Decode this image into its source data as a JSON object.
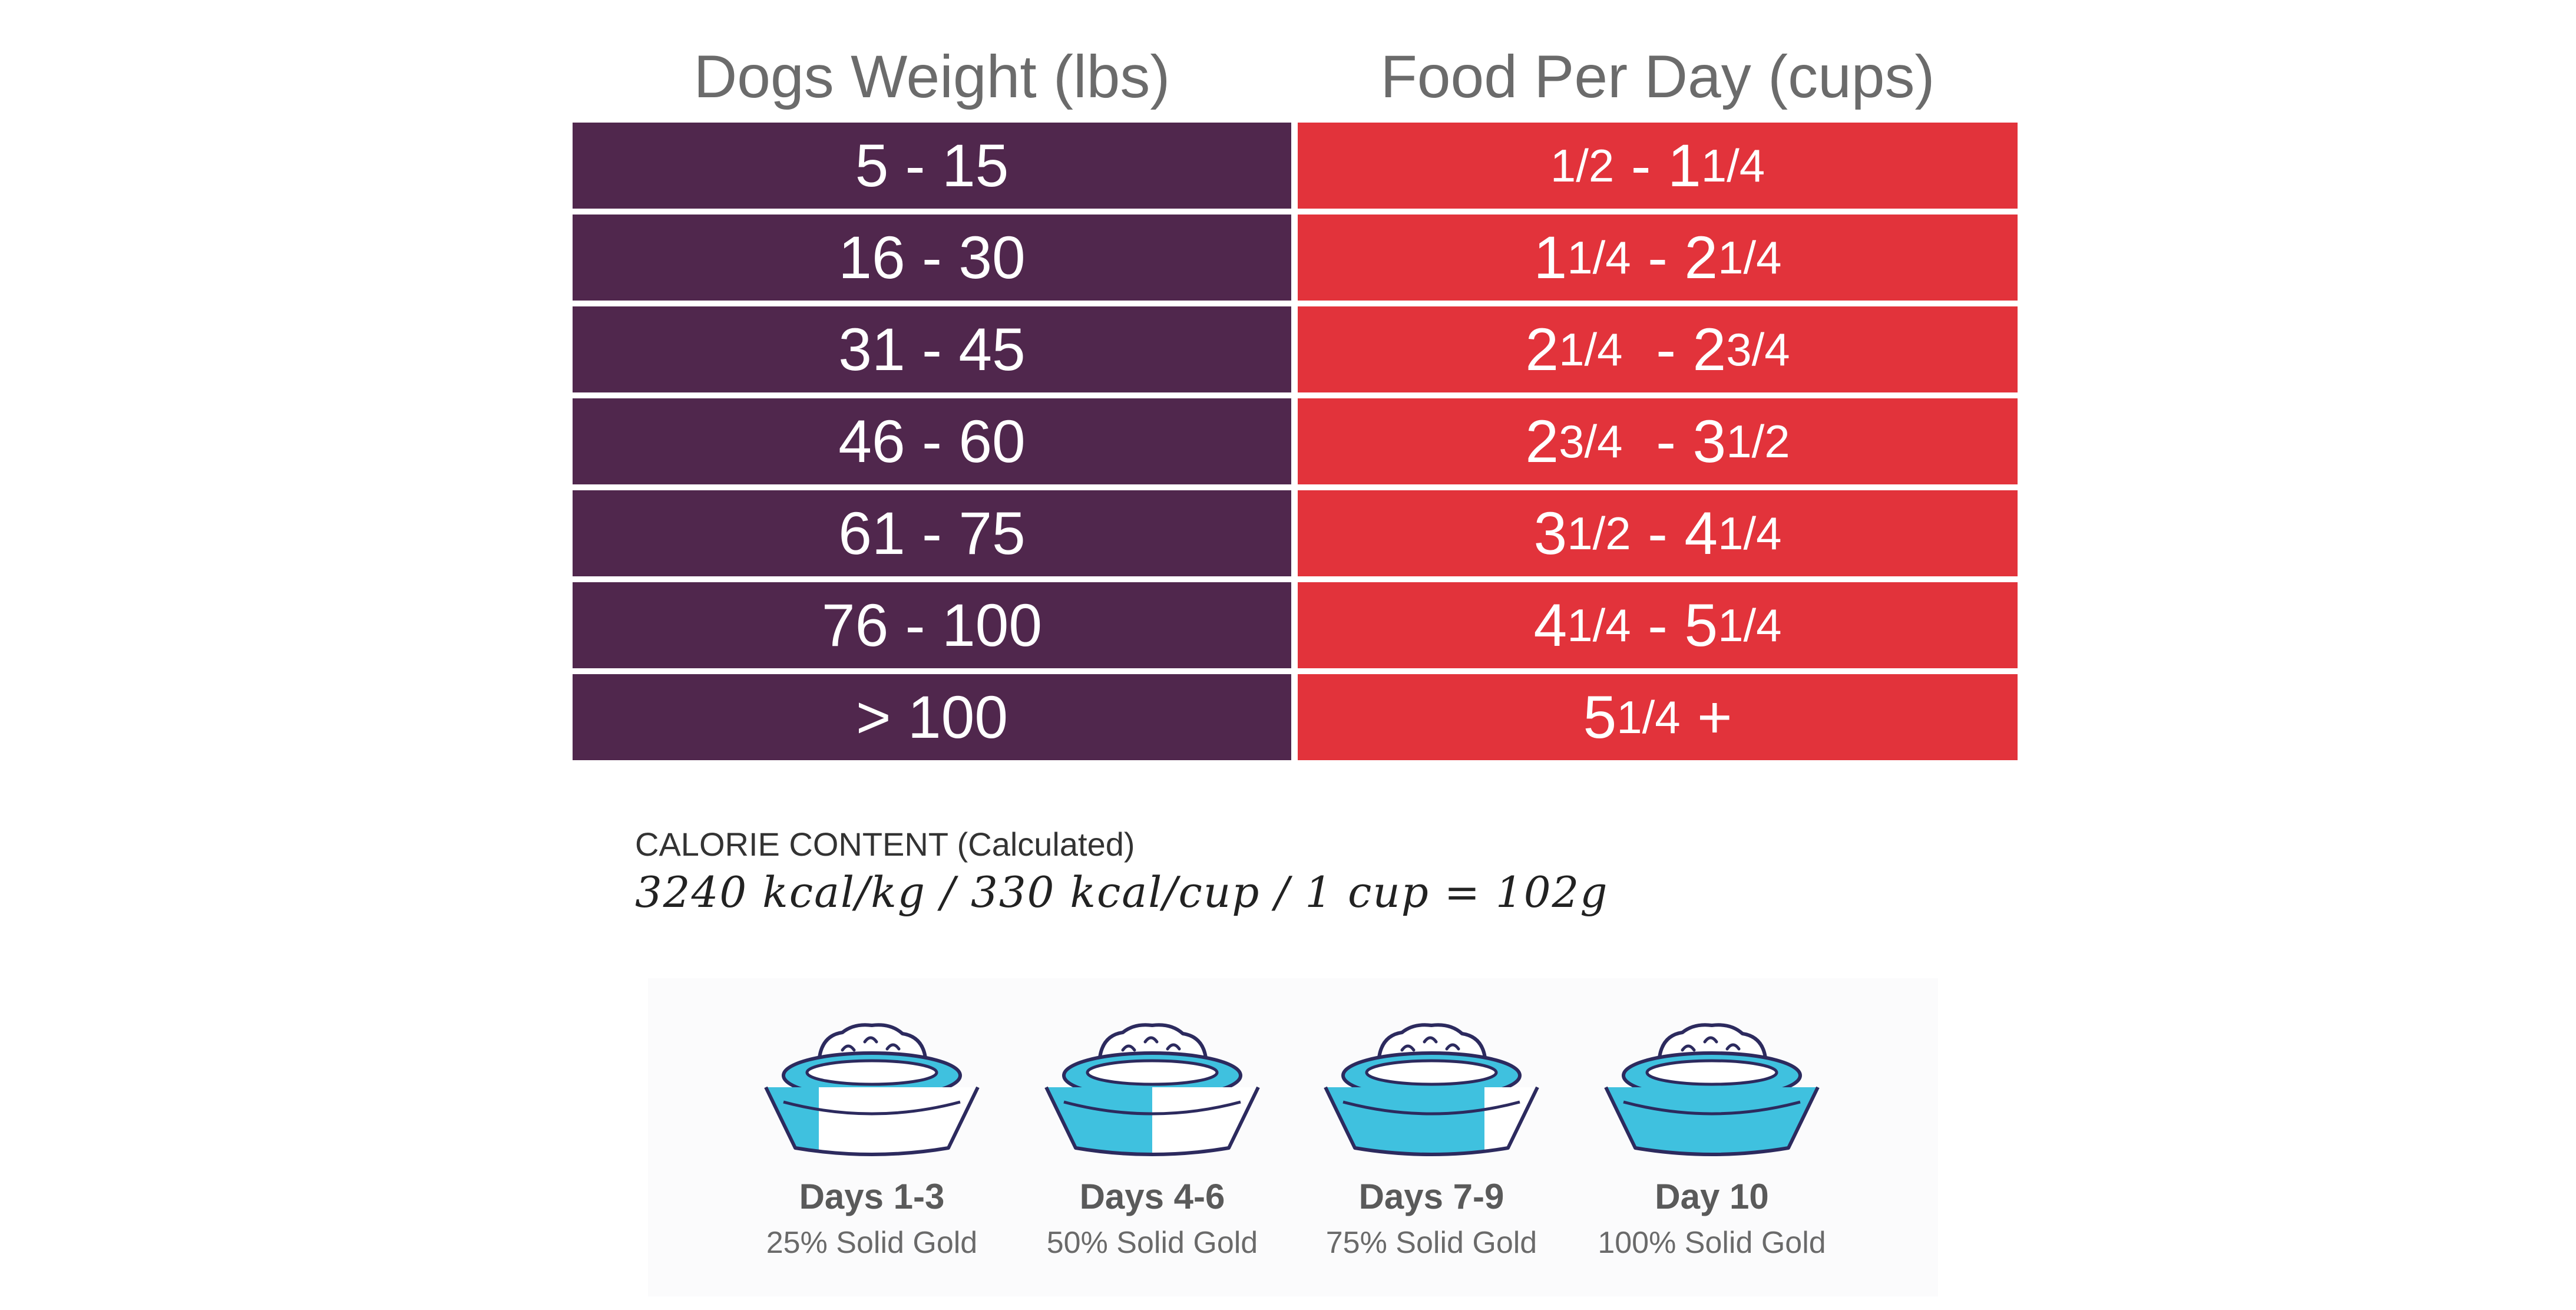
{
  "headers": {
    "weight": "Dogs Weight (lbs)",
    "food": "Food Per Day (cups)"
  },
  "rows": [
    {
      "weight": "5 - 15",
      "food": {
        "a_whole": "",
        "a_frac": "1/2",
        "sep": " - ",
        "b_whole": "1",
        "b_frac": "1/4"
      }
    },
    {
      "weight": "16 - 30",
      "food": {
        "a_whole": "1",
        "a_frac": "1/4",
        "sep": " - ",
        "b_whole": "2",
        "b_frac": "1/4"
      }
    },
    {
      "weight": "31 - 45",
      "food": {
        "a_whole": "2",
        "a_frac": "1/4",
        "sep": "  - ",
        "b_whole": "2",
        "b_frac": "3/4"
      }
    },
    {
      "weight": "46 - 60",
      "food": {
        "a_whole": "2",
        "a_frac": "3/4",
        "sep": "  - ",
        "b_whole": "3",
        "b_frac": "1/2"
      }
    },
    {
      "weight": "61 - 75",
      "food": {
        "a_whole": "3",
        "a_frac": "1/2",
        "sep": " - ",
        "b_whole": "4",
        "b_frac": "1/4"
      }
    },
    {
      "weight": "76 - 100",
      "food": {
        "a_whole": "4",
        "a_frac": "1/4",
        "sep": " - ",
        "b_whole": "5",
        "b_frac": "1/4"
      }
    },
    {
      "weight": "> 100",
      "food": {
        "a_whole": "5",
        "a_frac": "1/4",
        "sep": " +",
        "b_whole": "",
        "b_frac": ""
      }
    }
  ],
  "calorie": {
    "title": "CALORIE CONTENT (Calculated)",
    "values": "3240 kcal/kg / 330 kcal/cup / 1 cup = 102g"
  },
  "transition": {
    "colors": {
      "new_food": "#3fc1df",
      "old_food": "#ffffff",
      "outline": "#2c2a5e"
    },
    "steps": [
      {
        "day": "Days 1-3",
        "pct": "25% Solid Gold",
        "fill_fraction": 0.25,
        "icon": "food-bowl-icon"
      },
      {
        "day": "Days 4-6",
        "pct": "50% Solid Gold",
        "fill_fraction": 0.5,
        "icon": "food-bowl-icon"
      },
      {
        "day": "Days 7-9",
        "pct": "75% Solid Gold",
        "fill_fraction": 0.75,
        "icon": "food-bowl-icon"
      },
      {
        "day": "Day 10",
        "pct": "100% Solid Gold",
        "fill_fraction": 1.0,
        "icon": "food-bowl-icon"
      }
    ]
  }
}
